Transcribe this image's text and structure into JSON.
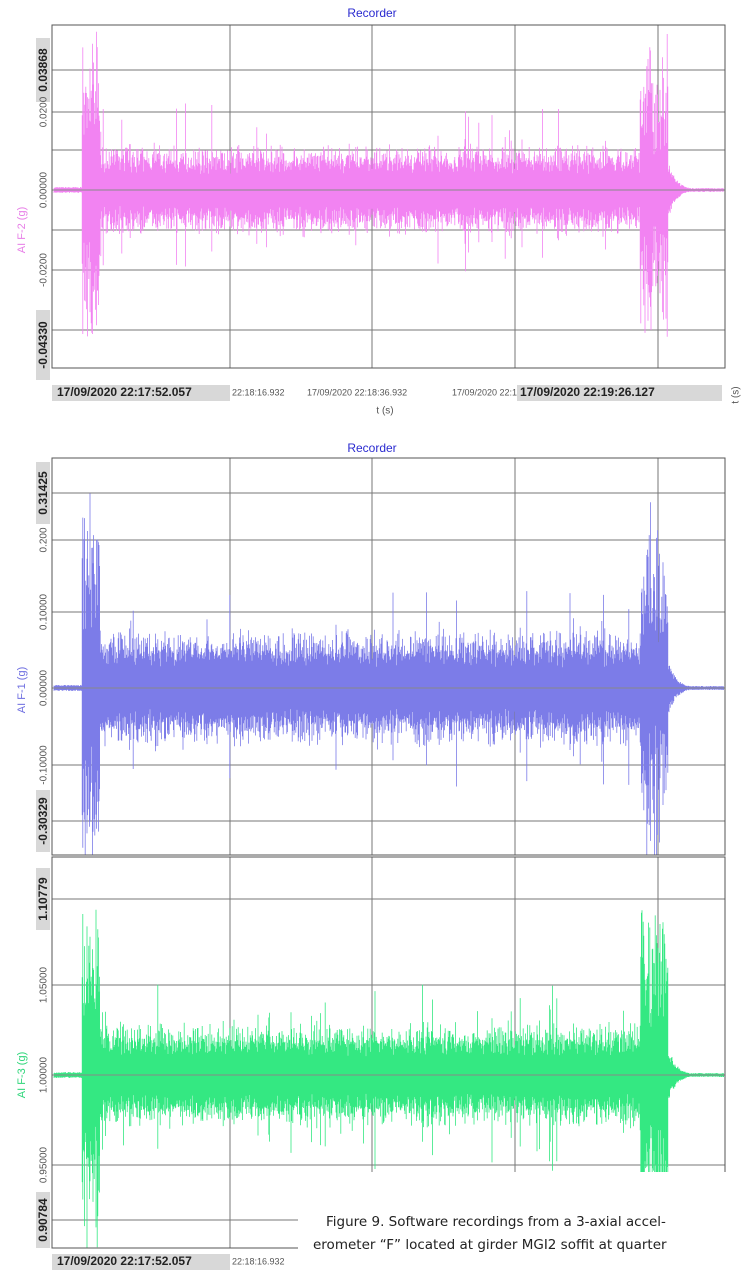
{
  "panels": [
    {
      "title": "Recorder",
      "y_label": "AI F-2 (g)",
      "y_ticks": [
        "0.03868",
        "0.0200",
        "0.00000",
        "-0.0200",
        "-0.04330"
      ],
      "x_ticks": [
        "17/09/2020 22:17:52.057",
        "22:18:16.932",
        "17/09/2020 22:18:36.932",
        "17/09/2020 22:18:",
        "17/09/2020 22:19:26.127"
      ],
      "x_label": "t (s)"
    },
    {
      "title": "Recorder",
      "y_label": "AI F-1 (g)",
      "y_ticks": [
        "0.31425",
        "0.200",
        "0.10000",
        "0.00000",
        "-0.10000",
        "-0.30329"
      ]
    },
    {
      "y_label": "AI F-3 (g)",
      "y_ticks": [
        "1.10779",
        "1.05000",
        "1.00000",
        "0.95000",
        "0.90784"
      ],
      "x_ticks": [
        "17/09/2020 22:17:52.057",
        "22:18:16.932"
      ]
    }
  ],
  "side_label": "t (s)",
  "caption": [
    "Figure 9. Software recordings from a 3-axial accel-",
    "erometer “F” located at girder MGI2 soffit at quarter"
  ]
}
